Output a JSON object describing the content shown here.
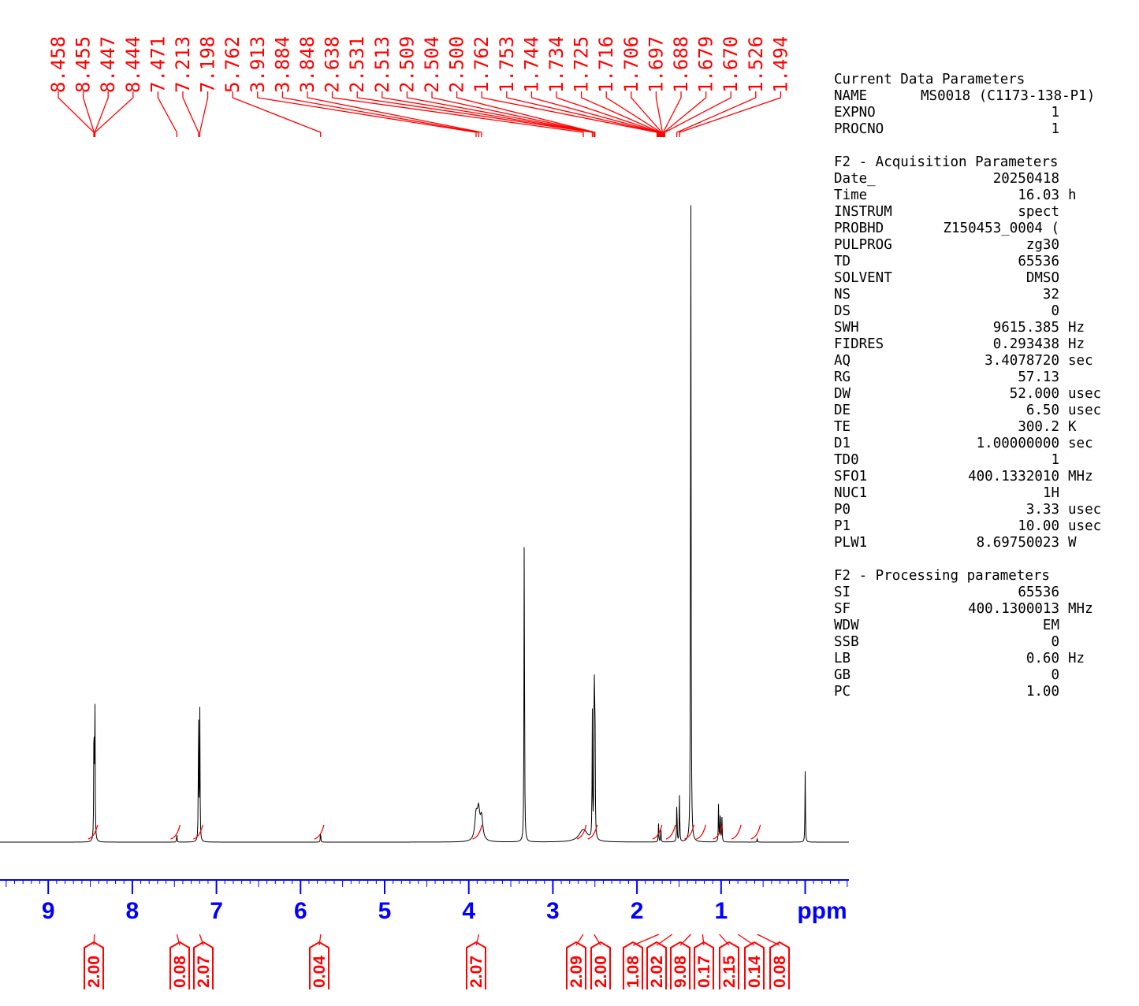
{
  "chart_data": {
    "type": "line",
    "title": "",
    "xlabel": "ppm",
    "x_axis": {
      "min": -0.5,
      "max": 9.6,
      "reversed": true,
      "major_ticks": [
        9,
        8,
        7,
        6,
        5,
        4,
        3,
        2,
        1
      ],
      "unit_label": "ppm"
    },
    "peak_labels": [
      "8.458",
      "8.455",
      "8.447",
      "8.444",
      "7.471",
      "7.213",
      "7.198",
      "5.762",
      "3.913",
      "3.884",
      "3.848",
      "2.638",
      "2.531",
      "2.513",
      "2.509",
      "2.504",
      "2.500",
      "1.762",
      "1.753",
      "1.744",
      "1.734",
      "1.725",
      "1.716",
      "1.706",
      "1.697",
      "1.688",
      "1.679",
      "1.670",
      "1.526",
      "1.494"
    ],
    "peaks": [
      {
        "ppm": 8.456,
        "height": 0.2
      },
      {
        "ppm": 8.445,
        "height": 0.196
      },
      {
        "ppm": 7.471,
        "height": 0.012
      },
      {
        "ppm": 7.213,
        "height": 0.19
      },
      {
        "ppm": 7.198,
        "height": 0.188
      },
      {
        "ppm": 5.762,
        "height": 0.015
      },
      {
        "ppm": 3.913,
        "height": 0.034
      },
      {
        "ppm": 3.884,
        "height": 0.04
      },
      {
        "ppm": 3.848,
        "height": 0.032
      },
      {
        "ppm": 3.34,
        "height": 0.47
      },
      {
        "ppm": 2.638,
        "height": 0.018
      },
      {
        "ppm": 2.531,
        "height": 0.185
      },
      {
        "ppm": 2.509,
        "height": 0.27
      },
      {
        "ppm": 2.5,
        "height": 0.23
      },
      {
        "ppm": 1.744,
        "height": 0.028
      },
      {
        "ppm": 1.716,
        "height": 0.02
      },
      {
        "ppm": 1.526,
        "height": 0.063
      },
      {
        "ppm": 1.494,
        "height": 0.071
      },
      {
        "ppm": 1.36,
        "height": 1.0
      },
      {
        "ppm": 1.03,
        "height": 0.058
      },
      {
        "ppm": 1.01,
        "height": 0.052
      },
      {
        "ppm": 0.99,
        "height": 0.04
      },
      {
        "ppm": 0.57,
        "height": 0.006
      },
      {
        "ppm": 0.0,
        "height": 0.102
      }
    ],
    "integrals": [
      {
        "value": "2.00",
        "ppm": 8.45
      },
      {
        "value": "0.08",
        "ppm": 7.47
      },
      {
        "value": "2.07",
        "ppm": 7.2
      },
      {
        "value": "0.04",
        "ppm": 5.76
      },
      {
        "value": "2.07",
        "ppm": 3.88
      },
      {
        "value": "2.09",
        "ppm": 2.64
      },
      {
        "value": "2.00",
        "ppm": 2.51
      },
      {
        "value": "1.08",
        "ppm": 1.74
      },
      {
        "value": "2.02",
        "ppm": 1.58
      },
      {
        "value": "9.08",
        "ppm": 1.36
      },
      {
        "value": "0.17",
        "ppm": 1.22
      },
      {
        "value": "2.15",
        "ppm": 1.02
      },
      {
        "value": "0.14",
        "ppm": 0.8
      },
      {
        "value": "0.08",
        "ppm": 0.57
      }
    ]
  },
  "parameters": {
    "current": {
      "title": "Current Data Parameters",
      "rows": [
        {
          "key": "NAME",
          "value": "MS0018 (C1173-138-P1)"
        },
        {
          "key": "EXPNO",
          "value": "1"
        },
        {
          "key": "PROCNO",
          "value": "1"
        }
      ]
    },
    "acquisition": {
      "title": "F2 - Acquisition Parameters",
      "rows": [
        {
          "key": "Date_",
          "value": "20250418",
          "unit": ""
        },
        {
          "key": "Time",
          "value": "16.03",
          "unit": "h"
        },
        {
          "key": "INSTRUM",
          "value": "spect",
          "unit": ""
        },
        {
          "key": "PROBHD",
          "value": "Z150453_0004 (",
          "unit": ""
        },
        {
          "key": "PULPROG",
          "value": "zg30",
          "unit": ""
        },
        {
          "key": "TD",
          "value": "65536",
          "unit": ""
        },
        {
          "key": "SOLVENT",
          "value": "DMSO",
          "unit": ""
        },
        {
          "key": "NS",
          "value": "32",
          "unit": ""
        },
        {
          "key": "DS",
          "value": "0",
          "unit": ""
        },
        {
          "key": "SWH",
          "value": "9615.385",
          "unit": "Hz"
        },
        {
          "key": "FIDRES",
          "value": "0.293438",
          "unit": "Hz"
        },
        {
          "key": "AQ",
          "value": "3.4078720",
          "unit": "sec"
        },
        {
          "key": "RG",
          "value": "57.13",
          "unit": ""
        },
        {
          "key": "DW",
          "value": "52.000",
          "unit": "usec"
        },
        {
          "key": "DE",
          "value": "6.50",
          "unit": "usec"
        },
        {
          "key": "TE",
          "value": "300.2",
          "unit": "K"
        },
        {
          "key": "D1",
          "value": "1.00000000",
          "unit": "sec"
        },
        {
          "key": "TD0",
          "value": "1",
          "unit": ""
        },
        {
          "key": "SFO1",
          "value": "400.1332010",
          "unit": "MHz"
        },
        {
          "key": "NUC1",
          "value": "1H",
          "unit": ""
        },
        {
          "key": "P0",
          "value": "3.33",
          "unit": "usec"
        },
        {
          "key": "P1",
          "value": "10.00",
          "unit": "usec"
        },
        {
          "key": "PLW1",
          "value": "8.69750023",
          "unit": "W"
        }
      ]
    },
    "processing": {
      "title": "F2 - Processing parameters",
      "rows": [
        {
          "key": "SI",
          "value": "65536",
          "unit": ""
        },
        {
          "key": "SF",
          "value": "400.1300013",
          "unit": "MHz"
        },
        {
          "key": "WDW",
          "value": "EM",
          "unit": ""
        },
        {
          "key": "SSB",
          "value": "0",
          "unit": ""
        },
        {
          "key": "LB",
          "value": "0.60",
          "unit": "Hz"
        },
        {
          "key": "GB",
          "value": "0",
          "unit": ""
        },
        {
          "key": "PC",
          "value": "1.00",
          "unit": ""
        }
      ]
    }
  },
  "colors": {
    "spectrum": "#000000",
    "annotation": "#ff0000",
    "axis": "#0000ff"
  }
}
